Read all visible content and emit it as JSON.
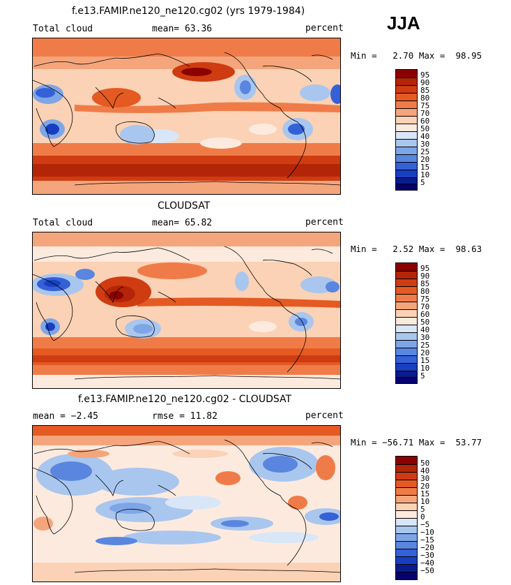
{
  "season": "JJA",
  "panels": [
    {
      "id": "model",
      "title": "f.e13.FAMIP.ne120_ne120.cg02 (yrs 1979-1984)",
      "left_label": "Total cloud",
      "center_label": "mean=  63.36",
      "right_label": "percent",
      "minmax": "Min =   2.70 Max =  98.95",
      "colorbar_labels": [
        "95",
        "90",
        "85",
        "80",
        "75",
        "70",
        "60",
        "50",
        "40",
        "30",
        "25",
        "20",
        "15",
        "10",
        "5"
      ]
    },
    {
      "id": "obs",
      "title": "CLOUDSAT",
      "left_label": "Total cloud",
      "center_label": "mean=  65.82",
      "right_label": "percent",
      "minmax": "Min =   2.52 Max =  98.63",
      "colorbar_labels": [
        "95",
        "90",
        "85",
        "80",
        "75",
        "70",
        "60",
        "50",
        "40",
        "30",
        "25",
        "20",
        "15",
        "10",
        "5"
      ]
    },
    {
      "id": "diff",
      "title": "f.e13.FAMIP.ne120_ne120.cg02 - CLOUDSAT",
      "left_label": "mean =  −2.45",
      "center_label": "rmse =  11.82",
      "right_label": "percent",
      "minmax": "Min = −56.71 Max =  53.77",
      "colorbar_labels": [
        "50",
        "40",
        "30",
        "20",
        "15",
        "10",
        "5",
        "0",
        "−5",
        "−10",
        "−15",
        "−20",
        "−30",
        "−40",
        "−50"
      ]
    }
  ],
  "colors": {
    "cloud_scale": [
      "#8b0000",
      "#b42508",
      "#cf3c12",
      "#e45a22",
      "#ef7c48",
      "#f5a57b",
      "#fbd2b5",
      "#fdeadf",
      "#d8e6f8",
      "#a9c6ee",
      "#7ea6e7",
      "#5a86e0",
      "#3561d8",
      "#183fc2",
      "#0a1c8c",
      "#05006e"
    ],
    "diff_scale": [
      "#8b0000",
      "#b42508",
      "#cf3c12",
      "#e45a22",
      "#ef7c48",
      "#f5a57b",
      "#fbd2b5",
      "#fdeadf",
      "#d8e6f8",
      "#a9c6ee",
      "#7ea6e7",
      "#5a86e0",
      "#3561d8",
      "#183fc2",
      "#0a1c8c",
      "#05006e"
    ],
    "ocean_mid_diff": "#f7d3c0",
    "coast": "#000000"
  }
}
